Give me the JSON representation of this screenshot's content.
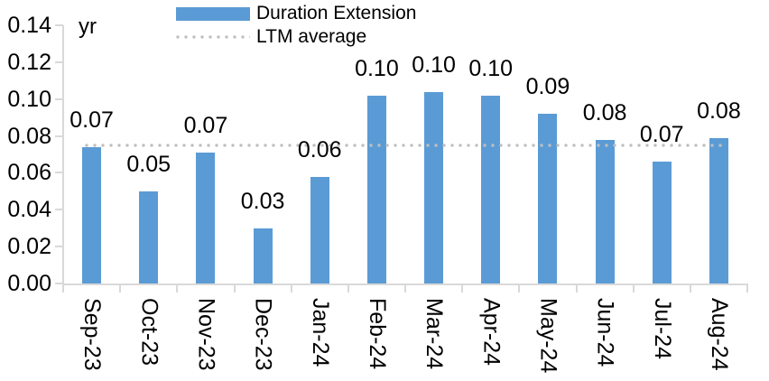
{
  "chart_data": {
    "type": "bar",
    "title": "",
    "unit_label": "yr",
    "categories": [
      "Sep-23",
      "Oct-23",
      "Nov-23",
      "Dec-23",
      "Jan-24",
      "Feb-24",
      "Mar-24",
      "Apr-24",
      "May-24",
      "Jun-24",
      "Jul-24",
      "Aug-24"
    ],
    "series": [
      {
        "name": "Duration Extension",
        "values": [
          0.074,
          0.05,
          0.071,
          0.03,
          0.058,
          0.102,
          0.104,
          0.102,
          0.092,
          0.078,
          0.066,
          0.079
        ]
      }
    ],
    "value_labels": [
      "0.07",
      "0.05",
      "0.07",
      "0.03",
      "0.06",
      "0.10",
      "0.10",
      "0.10",
      "0.09",
      "0.08",
      "0.07",
      "0.08"
    ],
    "average_line": {
      "name": "LTM average",
      "value": 0.075
    },
    "ylim": [
      0,
      0.14
    ],
    "y_tick_labels": [
      "0.14",
      "0.12",
      "0.10",
      "0.08",
      "0.06",
      "0.04",
      "0.02",
      "0.00"
    ],
    "grid": false,
    "legend_position": "top",
    "colors": {
      "bar": "#5B9BD5",
      "average_line": "#BFBFBF",
      "axis": "#D9D9D9",
      "text": "#000000"
    }
  }
}
